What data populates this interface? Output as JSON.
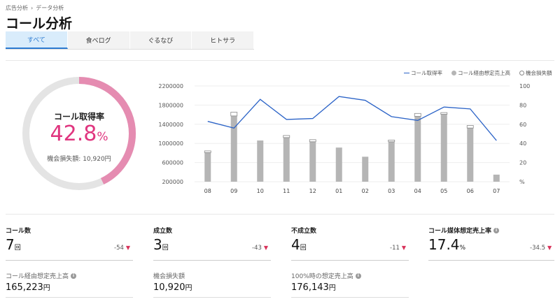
{
  "breadcrumb": [
    "広告分析",
    "›",
    "データ分析"
  ],
  "title": "コール分析",
  "tabs": [
    "すべて",
    "食べログ",
    "ぐるなび",
    "ヒトサラ"
  ],
  "donut": {
    "label": "コール取得率",
    "value": "42.8",
    "unit": "%",
    "loss": "機会損失額: 10,920円",
    "percent": 42.8,
    "colors": {
      "track": "#e4e4e4",
      "fill": "#e58cb1",
      "accent": "#e0357f"
    }
  },
  "legend": {
    "line": "コール取得率",
    "bar": "コール経由想定売上高",
    "loss": "機会損失額"
  },
  "chart_data": {
    "type": "bar",
    "categories": [
      "08",
      "09",
      "10",
      "11",
      "12",
      "01",
      "02",
      "03",
      "04",
      "05",
      "06",
      "07"
    ],
    "y_ticks_left": [
      "2200000",
      "1800000",
      "1400000",
      "1000000",
      "600000",
      "200000"
    ],
    "y_ticks_right": [
      "100",
      "80",
      "60",
      "40",
      "20",
      "%"
    ],
    "ylim_left": [
      0,
      2300000
    ],
    "ylim_right": [
      0,
      100
    ],
    "series": [
      {
        "name": "コール経由想定売上高",
        "type": "bar",
        "values": [
          700000,
          1580000,
          990000,
          1060000,
          960000,
          820000,
          600000,
          960000,
          1570000,
          1620000,
          1290000,
          170000
        ]
      },
      {
        "name": "機会損失額",
        "type": "bar",
        "values": [
          40000,
          90000,
          0,
          50000,
          50000,
          0,
          0,
          40000,
          70000,
          40000,
          60000,
          0
        ]
      },
      {
        "name": "コール取得率",
        "type": "line",
        "axis": "right",
        "values": [
          63,
          56,
          86,
          65,
          66,
          89,
          85,
          68,
          64,
          78,
          76,
          43
        ]
      }
    ],
    "colors": {
      "line": "#2b63c7",
      "bar": "#b5b5b5",
      "loss": "#ffffff",
      "grid": "#eeeeee"
    }
  },
  "metrics": [
    {
      "label": "コール数",
      "value": "7",
      "unit": "回",
      "diff": "-54",
      "info": false
    },
    {
      "label": "成立数",
      "value": "3",
      "unit": "回",
      "diff": "-43",
      "info": false
    },
    {
      "label": "不成立数",
      "value": "4",
      "unit": "回",
      "diff": "-11",
      "info": false
    },
    {
      "label": "コール媒体想定売上率",
      "value": "17.4",
      "unit": "%",
      "diff": "-34.5",
      "info": true
    }
  ],
  "subs": [
    {
      "label": "コール経由想定売上高",
      "value": "165,223",
      "unit": "円",
      "info": true
    },
    {
      "label": "機会損失額",
      "value": "10,920",
      "unit": "円",
      "info": false
    },
    {
      "label": "100%時の想定売上高",
      "value": "176,143",
      "unit": "円",
      "info": true
    }
  ],
  "icons": {
    "diff": "down-triangle-icon",
    "info": "info-icon"
  }
}
